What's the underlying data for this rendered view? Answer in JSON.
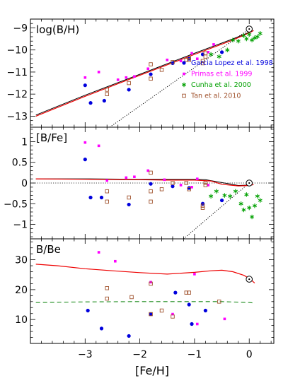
{
  "chart_data": [
    {
      "type": "scatter",
      "panel_label": "log(B/H)",
      "xlim": [
        -4.0,
        0.45
      ],
      "ylim": [
        -13.5,
        -8.6
      ],
      "yticks": [
        -13,
        -12,
        -11,
        -10,
        -9
      ],
      "ytick_labels": [
        "−13",
        "−12",
        "−11",
        "−10",
        "−9"
      ],
      "legend_position": "right",
      "legend": [
        {
          "name": "Garcia Lopez et al. 1998",
          "color": "#0000dd",
          "marker": "dot"
        },
        {
          "name": "Primas et al. 1999",
          "color": "#ff00ff",
          "marker": "square-filled"
        },
        {
          "name": "Cunha et al. 2000",
          "color": "#00a000",
          "marker": "asterisk"
        },
        {
          "name": "Tan et al. 2010",
          "color": "#a0522d",
          "marker": "square-open"
        }
      ],
      "series": [
        {
          "name": "Garcia Lopez et al. 1998",
          "points": [
            [
              -3.0,
              -11.6
            ],
            [
              -2.9,
              -12.4
            ],
            [
              -2.65,
              -12.3
            ],
            [
              -2.2,
              -11.8
            ],
            [
              -1.8,
              -11.1
            ],
            [
              -1.4,
              -10.6
            ],
            [
              -1.1,
              -10.4
            ],
            [
              -0.85,
              -10.2
            ],
            [
              -0.5,
              -10.1
            ]
          ]
        },
        {
          "name": "Primas et al. 1999",
          "points": [
            [
              -3.0,
              -11.25
            ],
            [
              -2.75,
              -11.0
            ],
            [
              -2.4,
              -11.35
            ],
            [
              -2.25,
              -11.25
            ],
            [
              -2.1,
              -11.2
            ],
            [
              -1.85,
              -10.85
            ],
            [
              -1.5,
              -10.45
            ],
            [
              -1.25,
              -10.5
            ],
            [
              -1.05,
              -10.15
            ],
            [
              -0.95,
              -10.4
            ],
            [
              -0.75,
              -10.1
            ],
            [
              -0.65,
              -9.75
            ]
          ]
        },
        {
          "name": "Cunha et al. 2000",
          "points": [
            [
              -0.7,
              -10.2
            ],
            [
              -0.55,
              -10.3
            ],
            [
              -0.4,
              -10.0
            ],
            [
              -0.3,
              -9.55
            ],
            [
              -0.2,
              -9.6
            ],
            [
              -0.1,
              -9.35
            ],
            [
              0.0,
              -9.3
            ],
            [
              0.05,
              -9.55
            ],
            [
              0.1,
              -9.45
            ],
            [
              0.2,
              -9.25
            ],
            [
              -0.05,
              -9.5
            ],
            [
              0.15,
              -9.4
            ]
          ]
        },
        {
          "name": "Tan et al. 2010",
          "points": [
            [
              -2.6,
              -11.8
            ],
            [
              -2.6,
              -12.0
            ],
            [
              -2.2,
              -11.5
            ],
            [
              -1.8,
              -11.3
            ],
            [
              -1.8,
              -10.65
            ],
            [
              -1.6,
              -10.9
            ],
            [
              -1.4,
              -10.55
            ],
            [
              -1.15,
              -10.45
            ],
            [
              -1.1,
              -10.45
            ],
            [
              -1.1,
              -10.35
            ],
            [
              -0.85,
              -10.5
            ],
            [
              -0.85,
              -10.6
            ],
            [
              -0.8,
              -10.15
            ],
            [
              -0.8,
              -10.3
            ]
          ]
        }
      ],
      "model_red": [
        [
          -3.9,
          -13.0
        ],
        [
          -3.0,
          -12.1
        ],
        [
          -2.0,
          -11.15
        ],
        [
          -1.0,
          -10.2
        ],
        [
          -0.3,
          -9.55
        ],
        [
          0.0,
          -9.22
        ],
        [
          0.08,
          -9.12
        ]
      ],
      "model_black": [
        [
          -3.9,
          -12.95
        ],
        [
          -3.0,
          -12.05
        ],
        [
          -2.0,
          -11.1
        ],
        [
          -1.0,
          -10.15
        ],
        [
          -0.3,
          -9.5
        ],
        [
          0.0,
          -9.2
        ]
      ],
      "dotted_line": [
        [
          -2.55,
          -13.5
        ],
        [
          0.0,
          -9.05
        ]
      ],
      "sun": [
        0.0,
        -9.05
      ]
    },
    {
      "type": "scatter",
      "panel_label": "[B/Fe]",
      "xlim": [
        -4.0,
        0.45
      ],
      "ylim": [
        -1.35,
        1.35
      ],
      "yticks": [
        -1,
        -0.5,
        0,
        0.5,
        1
      ],
      "ytick_labels": [
        "−1",
        "−0.5",
        "0",
        "0.5",
        "1"
      ],
      "series": [
        {
          "name": "Garcia Lopez et al. 1998",
          "points": [
            [
              -3.0,
              0.57
            ],
            [
              -2.9,
              -0.35
            ],
            [
              -2.7,
              -0.35
            ],
            [
              -2.2,
              -0.52
            ],
            [
              -1.8,
              -0.02
            ],
            [
              -1.4,
              -0.08
            ],
            [
              -1.1,
              -0.12
            ],
            [
              -0.85,
              -0.5
            ],
            [
              -0.5,
              -0.42
            ]
          ]
        },
        {
          "name": "Primas et al. 1999",
          "points": [
            [
              -3.0,
              0.98
            ],
            [
              -2.75,
              0.9
            ],
            [
              -2.6,
              0.06
            ],
            [
              -2.25,
              0.13
            ],
            [
              -2.1,
              0.15
            ],
            [
              -1.85,
              0.3
            ],
            [
              -1.55,
              0.08
            ],
            [
              -1.25,
              -0.05
            ],
            [
              -1.05,
              -0.1
            ],
            [
              -0.95,
              0.1
            ],
            [
              -0.75,
              -0.05
            ]
          ]
        },
        {
          "name": "Cunha et al. 2000",
          "points": [
            [
              -0.7,
              -0.32
            ],
            [
              -0.6,
              -0.2
            ],
            [
              -0.45,
              -0.3
            ],
            [
              -0.35,
              -0.32
            ],
            [
              -0.25,
              -0.2
            ],
            [
              -0.15,
              -0.5
            ],
            [
              -0.1,
              -0.65
            ],
            [
              -0.05,
              -0.28
            ],
            [
              0.0,
              -0.6
            ],
            [
              0.05,
              -0.82
            ],
            [
              0.1,
              -0.55
            ],
            [
              0.15,
              -0.32
            ],
            [
              0.2,
              -0.42
            ]
          ]
        },
        {
          "name": "Tan et al. 2010",
          "points": [
            [
              -2.6,
              -0.2
            ],
            [
              -2.6,
              -0.45
            ],
            [
              -2.2,
              -0.35
            ],
            [
              -1.8,
              0.25
            ],
            [
              -1.8,
              -0.2
            ],
            [
              -1.8,
              -0.45
            ],
            [
              -1.6,
              -0.15
            ],
            [
              -1.4,
              0.0
            ],
            [
              -1.15,
              0.0
            ],
            [
              -1.1,
              -0.15
            ],
            [
              -0.85,
              -0.55
            ],
            [
              -0.85,
              -0.6
            ],
            [
              -0.8,
              0.0
            ],
            [
              -0.8,
              -0.05
            ]
          ]
        }
      ],
      "model_red": [
        [
          -3.9,
          0.1
        ],
        [
          -3.0,
          0.09
        ],
        [
          -2.0,
          0.08
        ],
        [
          -1.5,
          0.07
        ],
        [
          -1.0,
          0.07
        ],
        [
          -0.7,
          0.05
        ],
        [
          -0.5,
          -0.03
        ],
        [
          -0.2,
          -0.07
        ],
        [
          0.0,
          -0.06
        ],
        [
          0.08,
          -0.04
        ]
      ],
      "model_black": [
        [
          -3.9,
          0.1
        ],
        [
          -3.0,
          0.1
        ],
        [
          -2.0,
          0.09
        ],
        [
          -1.0,
          0.09
        ],
        [
          -0.8,
          0.08
        ],
        [
          -0.5,
          0.01
        ],
        [
          -0.2,
          -0.06
        ],
        [
          0.0,
          -0.05
        ]
      ],
      "dotted_line": [
        [
          -1.2,
          -1.35
        ],
        [
          0.0,
          0.0
        ]
      ],
      "zero_line": 0,
      "sun": [
        0.0,
        0.0
      ]
    },
    {
      "type": "scatter",
      "panel_label": "B/Be",
      "xlabel": "[Fe/H]",
      "xlim": [
        -4.0,
        0.45
      ],
      "xticks": [
        -3,
        -2,
        -1,
        0
      ],
      "xtick_labels": [
        "−3",
        "−2",
        "−1",
        "0"
      ],
      "ylim": [
        2,
        37
      ],
      "yticks": [
        10,
        20,
        30
      ],
      "ytick_labels": [
        "10",
        "20",
        "30"
      ],
      "series": [
        {
          "name": "Garcia Lopez et al. 1998",
          "points": [
            [
              -2.95,
              13.0
            ],
            [
              -2.7,
              7.0
            ],
            [
              -2.2,
              4.5
            ],
            [
              -1.8,
              11.8
            ],
            [
              -1.35,
              19.0
            ],
            [
              -1.1,
              15.0
            ],
            [
              -1.05,
              8.5
            ],
            [
              -0.8,
              13.0
            ]
          ]
        },
        {
          "name": "Primas et al. 1999",
          "points": [
            [
              -2.75,
              32.5
            ],
            [
              -2.45,
              29.5
            ],
            [
              -1.8,
              22.5
            ],
            [
              -1.4,
              11.8
            ],
            [
              -1.0,
              25.2
            ],
            [
              -0.95,
              8.5
            ],
            [
              -0.45,
              10.2
            ]
          ]
        },
        {
          "name": "Tan et al. 2010",
          "points": [
            [
              -2.6,
              20.5
            ],
            [
              -2.6,
              17.0
            ],
            [
              -2.15,
              17.5
            ],
            [
              -1.8,
              22.0
            ],
            [
              -1.8,
              11.8
            ],
            [
              -1.6,
              13.0
            ],
            [
              -1.4,
              11.0
            ],
            [
              -1.15,
              19.0
            ],
            [
              -1.1,
              19.0
            ],
            [
              -0.55,
              16.0
            ]
          ]
        }
      ],
      "model_red": [
        [
          -3.9,
          28.5
        ],
        [
          -3.5,
          28.0
        ],
        [
          -3.0,
          27.0
        ],
        [
          -2.5,
          26.3
        ],
        [
          -2.0,
          25.7
        ],
        [
          -1.5,
          25.2
        ],
        [
          -1.0,
          25.8
        ],
        [
          -0.7,
          26.3
        ],
        [
          -0.5,
          26.5
        ],
        [
          -0.3,
          26.0
        ],
        [
          -0.1,
          24.8
        ],
        [
          0.0,
          23.8
        ],
        [
          0.1,
          22.2
        ]
      ],
      "model_green_dashed": [
        [
          -3.9,
          15.7
        ],
        [
          -3.0,
          15.9
        ],
        [
          -2.0,
          16.0
        ],
        [
          -1.0,
          16.0
        ],
        [
          -0.5,
          16.0
        ],
        [
          0.0,
          15.7
        ],
        [
          0.1,
          15.5
        ]
      ],
      "sun": [
        0.0,
        23.5
      ]
    }
  ],
  "colors": {
    "garcia": "#0000dd",
    "primas": "#ff00ff",
    "cunha": "#00a000",
    "tan": "#a0522d",
    "model": "#ee0000",
    "dashed": "#1a8a1a"
  }
}
